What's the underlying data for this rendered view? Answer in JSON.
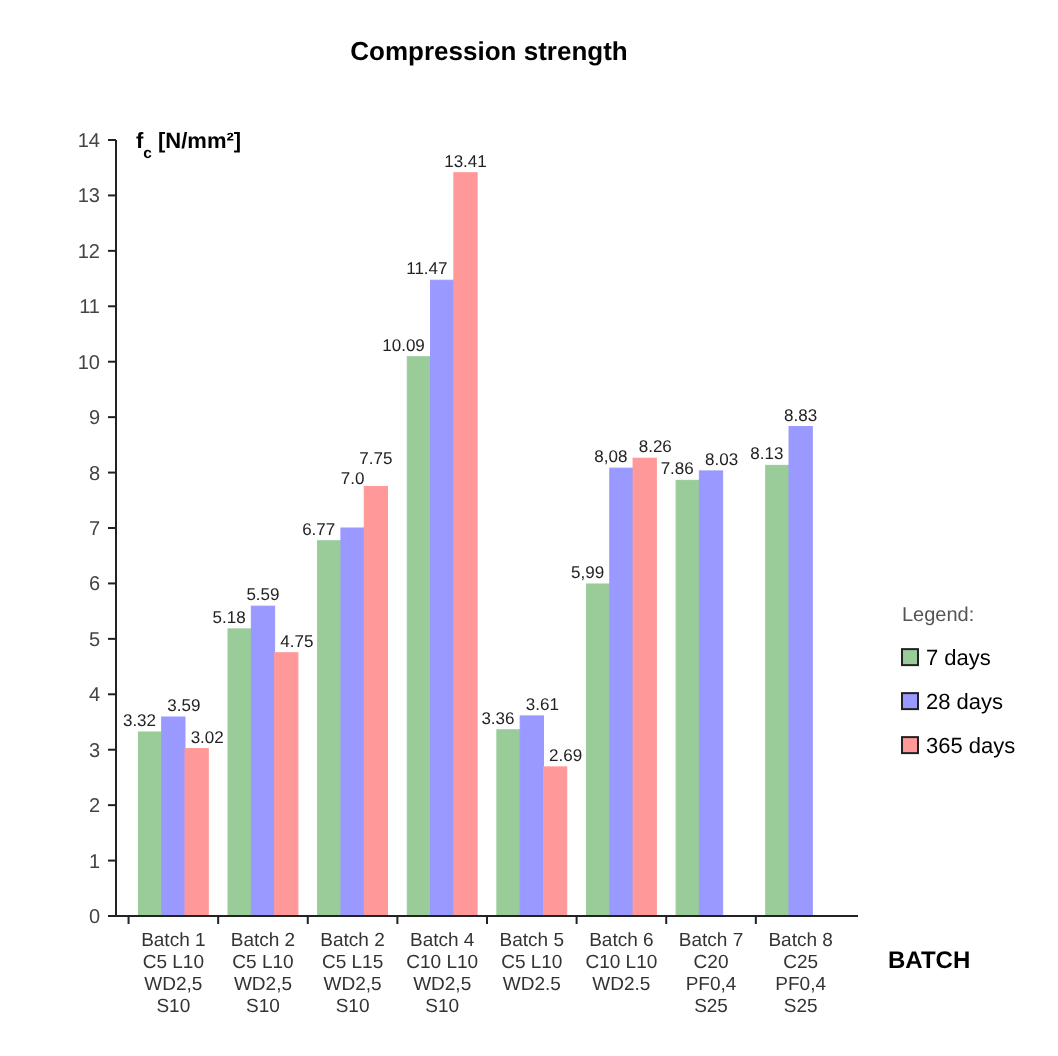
{
  "chart_data": {
    "type": "bar",
    "title": "Compression strength",
    "ylabel": "f$_{c}$ [N/mm²]",
    "xlabel": "BATCH",
    "legend_title": "Legend:",
    "categories": [
      "Batch 1\nC5 L10\nWD2,5\nS10",
      "Batch 2\nC5 L10\nWD2,5\nS10",
      "Batch 2\nC5 L15\nWD2,5\nS10",
      "Batch 4\nC10 L10\nWD2,5\nS10",
      "Batch 5\nC5 L10\nWD2.5",
      "Batch 6\nC10 L10\nWD2.5",
      "Batch 7\nC20\nPF0,4\nS25",
      "Batch 8\nC25\nPF0,4\nS25"
    ],
    "series": [
      {
        "name": "7 days",
        "color": "#99cc99",
        "values": [
          3.32,
          5.18,
          6.77,
          10.09,
          3.36,
          5.99,
          7.86,
          8.13
        ],
        "value_labels": [
          "3.32",
          "5.18",
          "6.77",
          "10.09",
          "3.36",
          "5,99",
          "7.86",
          "8.13"
        ]
      },
      {
        "name": "28 days",
        "color": "#9999ff",
        "values": [
          3.59,
          5.59,
          7.0,
          11.47,
          3.61,
          8.08,
          8.03,
          8.83
        ],
        "value_labels": [
          "3.59",
          "5.59",
          "7.0",
          "11.47",
          "3.61",
          "8,08",
          "8.03",
          "8.83"
        ]
      },
      {
        "name": "365 days",
        "color": "#ff9999",
        "values": [
          3.02,
          4.75,
          7.75,
          13.41,
          2.69,
          8.26,
          null,
          null
        ],
        "value_labels": [
          "3.02",
          "4.75",
          "7.75",
          "13.41",
          "2.69",
          "8.26",
          null,
          null
        ]
      }
    ],
    "ylim": [
      0,
      14
    ],
    "yticks": [
      0,
      1,
      2,
      3,
      4,
      5,
      6,
      7,
      8,
      9,
      10,
      11,
      12,
      13,
      14
    ],
    "grid": false,
    "legend": "right"
  }
}
